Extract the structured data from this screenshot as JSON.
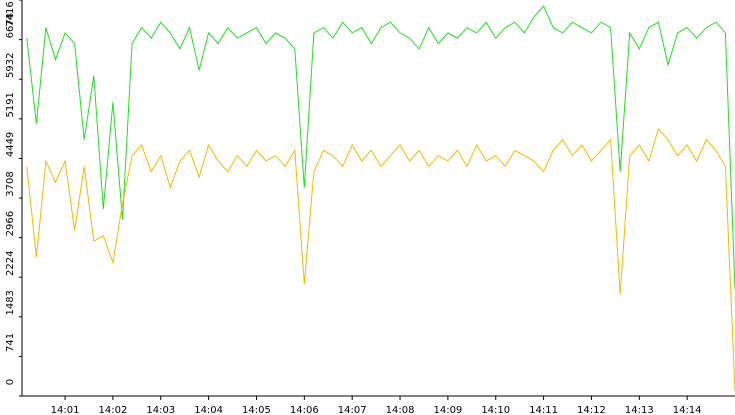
{
  "chart_data": {
    "type": "line",
    "x": [
      0.2,
      0.4,
      0.6,
      0.8,
      1.0,
      1.2,
      1.4,
      1.6,
      1.8,
      2.0,
      2.2,
      2.4,
      2.6,
      2.8,
      3.0,
      3.2,
      3.4,
      3.6,
      3.8,
      4.0,
      4.2,
      4.4,
      4.6,
      4.8,
      5.0,
      5.2,
      5.4,
      5.6,
      5.8,
      6.0,
      6.2,
      6.4,
      6.6,
      6.8,
      7.0,
      7.2,
      7.4,
      7.6,
      7.8,
      8.0,
      8.2,
      8.4,
      8.6,
      8.8,
      9.0,
      9.2,
      9.4,
      9.6,
      9.8,
      10.0,
      10.2,
      10.4,
      10.6,
      10.8,
      11.0,
      11.2,
      11.4,
      11.6,
      11.8,
      12.0,
      12.2,
      12.4,
      12.6,
      12.8,
      13.0,
      13.2,
      13.4,
      13.6,
      13.8,
      14.0,
      14.2,
      14.4,
      14.6,
      14.8,
      15.0
    ],
    "series": [
      {
        "color": "#22dd22",
        "values": [
          6700,
          5100,
          6900,
          6300,
          6800,
          6600,
          4800,
          6000,
          3500,
          5500,
          3300,
          6600,
          6900,
          6700,
          7000,
          6800,
          6500,
          6900,
          6100,
          6800,
          6600,
          6900,
          6700,
          6800,
          6900,
          6600,
          6800,
          6700,
          6500,
          3900,
          6800,
          6900,
          6700,
          7000,
          6800,
          6900,
          6600,
          6900,
          7000,
          6800,
          6700,
          6500,
          6900,
          6600,
          6800,
          6700,
          6900,
          6800,
          7000,
          6700,
          6900,
          7000,
          6800,
          7100,
          7300,
          6900,
          6800,
          7000,
          6900,
          6800,
          7000,
          6900,
          4200,
          6800,
          6500,
          6900,
          7000,
          6200,
          6800,
          6900,
          6700,
          6900,
          7000,
          6800,
          2000
        ]
      },
      {
        "color": "#f5b800",
        "values": [
          4300,
          2600,
          4400,
          4000,
          4400,
          3100,
          4300,
          2900,
          3000,
          2500,
          3600,
          4500,
          4700,
          4200,
          4500,
          3900,
          4400,
          4600,
          4100,
          4700,
          4400,
          4200,
          4500,
          4300,
          4600,
          4400,
          4500,
          4300,
          4600,
          2100,
          4200,
          4600,
          4500,
          4300,
          4700,
          4400,
          4600,
          4300,
          4500,
          4700,
          4400,
          4600,
          4300,
          4500,
          4400,
          4600,
          4300,
          4700,
          4400,
          4500,
          4300,
          4600,
          4500,
          4400,
          4200,
          4600,
          4800,
          4500,
          4700,
          4400,
          4600,
          4800,
          1900,
          4500,
          4700,
          4400,
          5000,
          4800,
          4500,
          4700,
          4400,
          4800,
          4600,
          4300,
          100
        ]
      }
    ],
    "xlim": [
      0.1,
      15.0
    ],
    "xticks": [
      {
        "value": 1,
        "label": "14:01"
      },
      {
        "value": 2,
        "label": "14:02"
      },
      {
        "value": 3,
        "label": "14:03"
      },
      {
        "value": 4,
        "label": "14:04"
      },
      {
        "value": 5,
        "label": "14:05"
      },
      {
        "value": 6,
        "label": "14:06"
      },
      {
        "value": 7,
        "label": "14:07"
      },
      {
        "value": 8,
        "label": "14:08"
      },
      {
        "value": 9,
        "label": "14:09"
      },
      {
        "value": 10,
        "label": "14:10"
      },
      {
        "value": 11,
        "label": "14:11"
      },
      {
        "value": 12,
        "label": "14:12"
      },
      {
        "value": 13,
        "label": "14:13"
      },
      {
        "value": 14,
        "label": "14:14"
      }
    ],
    "ylim": [
      0,
      7416
    ],
    "yticks": [
      0,
      741,
      1483,
      2224,
      2966,
      3708,
      4449,
      5191,
      5932,
      6674,
      7416
    ]
  }
}
